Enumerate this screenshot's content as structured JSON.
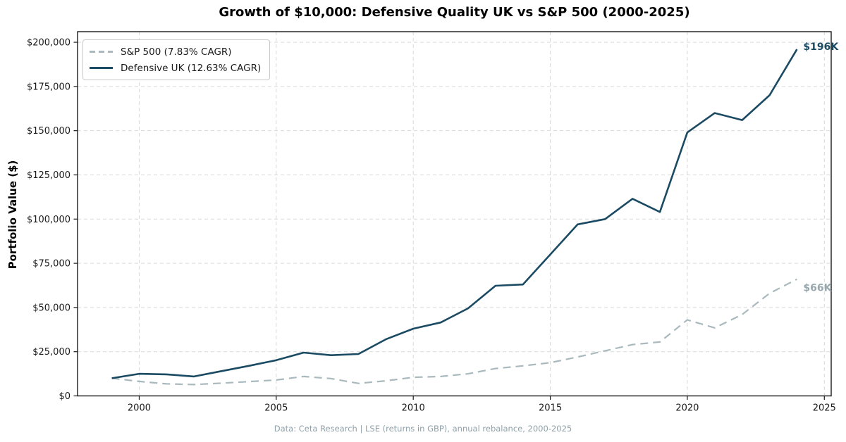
{
  "figure": {
    "title": "Growth of $10,000: Defensive Quality UK vs S&P 500 (2000-2025)",
    "ylabel": "Portfolio Value ($)",
    "footer": "Data: Ceta Research | LSE (returns in GBP), annual rebalance, 2000-2025"
  },
  "colors": {
    "background": "#ffffff",
    "sp500_line": "#a9b9bd",
    "defensive_line": "#1b4a63",
    "sp500_end_label": "#98a8ae",
    "defensive_end_label": "#1b4a63",
    "grid": "#d9d9d9",
    "frame": "#1a1a1a",
    "tick_text": "#1a1a1a",
    "footer_text": "#8fa0a8",
    "title_text": "#000000"
  },
  "legend": {
    "items": [
      {
        "label": "S&P 500 (7.83% CAGR)",
        "style": "dashed",
        "color": "#a9b9bd"
      },
      {
        "label": "Defensive UK (12.63% CAGR)",
        "style": "solid",
        "color": "#1b4a63"
      }
    ]
  },
  "chart_data": {
    "type": "line",
    "title": "Growth of $10,000: Defensive Quality UK vs S&P 500 (2000-2025)",
    "xlabel": "",
    "ylabel": "Portfolio Value ($)",
    "x": [
      1999,
      2000,
      2001,
      2002,
      2003,
      2004,
      2005,
      2006,
      2007,
      2008,
      2009,
      2010,
      2011,
      2012,
      2013,
      2014,
      2015,
      2016,
      2017,
      2018,
      2019,
      2020,
      2021,
      2022,
      2023,
      2024
    ],
    "series": [
      {
        "name": "S&P 500 (7.83% CAGR)",
        "dash": true,
        "color": "#a9b9bd",
        "line_width": 2.2,
        "end_label": "$66K",
        "end_label_color": "#98a8ae",
        "values": [
          10000,
          8200,
          6800,
          6400,
          7200,
          8100,
          9000,
          11000,
          9800,
          7100,
          8500,
          10500,
          11000,
          12500,
          15500,
          17000,
          18800,
          22000,
          25500,
          29000,
          30500,
          43000,
          38500,
          46000,
          58000,
          66000
        ]
      },
      {
        "name": "Defensive UK (12.63% CAGR)",
        "dash": false,
        "color": "#1b4a63",
        "line_width": 2.6,
        "end_label": "$196K",
        "end_label_color": "#1b4a63",
        "values": [
          10000,
          12500,
          12200,
          11000,
          14000,
          17000,
          20200,
          24500,
          23000,
          23700,
          32000,
          38000,
          41500,
          49500,
          62300,
          63000,
          80000,
          97000,
          100000,
          111500,
          104000,
          149000,
          160000,
          156000,
          170000,
          196000
        ]
      }
    ],
    "xticks": [
      2000,
      2005,
      2010,
      2015,
      2020,
      2025
    ],
    "yticks": [
      0,
      25000,
      50000,
      75000,
      100000,
      125000,
      150000,
      175000,
      200000
    ],
    "ytick_labels": [
      "$0",
      "$25,000",
      "$50,000",
      "$75,000",
      "$100,000",
      "$125,000",
      "$150,000",
      "$175,000",
      "$200,000"
    ],
    "xlim": [
      1997.75,
      2025.25
    ],
    "ylim": [
      0,
      206000
    ],
    "grid": true,
    "grid_style": "dashed",
    "legend_position": "upper left"
  }
}
